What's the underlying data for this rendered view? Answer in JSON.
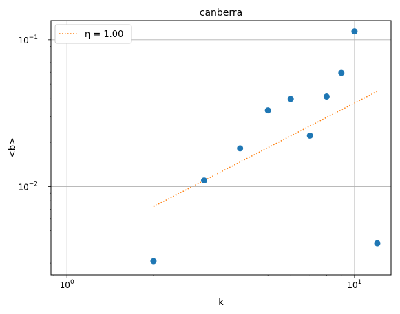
{
  "chart_data": {
    "type": "scatter",
    "title": "canberra",
    "xlabel": "k",
    "ylabel": "<b>",
    "xscale": "log",
    "yscale": "log",
    "xlim": [
      0.88,
      13.4
    ],
    "ylim": [
      0.0025,
      0.135
    ],
    "grid": true,
    "legend_position": "top-left",
    "x_ticks": [
      {
        "value": 1,
        "base": "10",
        "exp": "0"
      },
      {
        "value": 10,
        "base": "10",
        "exp": "1"
      }
    ],
    "y_ticks": [
      {
        "value": 0.01,
        "base": "10",
        "exp": "−2"
      },
      {
        "value": 0.1,
        "base": "10",
        "exp": "−1"
      }
    ],
    "series": [
      {
        "kind": "scatter",
        "color": "#1f77b4",
        "x": [
          2,
          3,
          4,
          5,
          6,
          7,
          8,
          9,
          10,
          12
        ],
        "y": [
          0.0031,
          0.011,
          0.0182,
          0.033,
          0.0395,
          0.0222,
          0.041,
          0.0595,
          0.114,
          0.0041
        ]
      },
      {
        "kind": "line",
        "name": "η = 1.00",
        "color": "#ff7f0e",
        "style": "dotted",
        "x": [
          2,
          12
        ],
        "y": [
          0.0073,
          0.0445
        ]
      }
    ]
  }
}
